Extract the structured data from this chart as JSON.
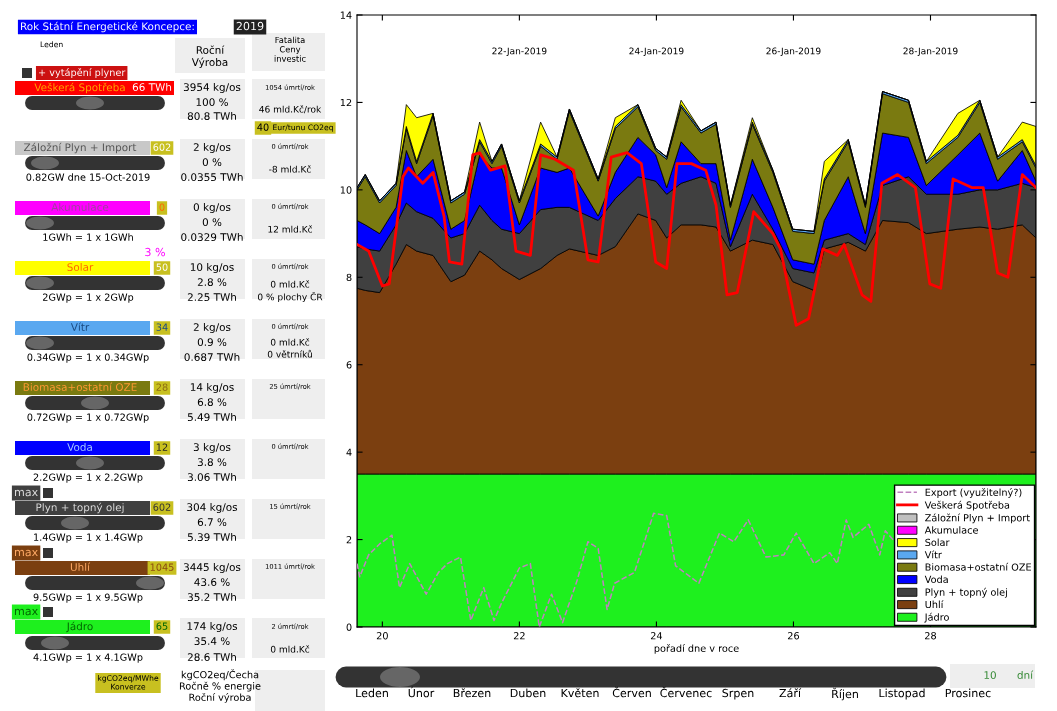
{
  "chart_data": [
    {
      "type": "other",
      "annotations": [
        "Rok Státní Energetické Koncepce:",
        "2019",
        "Leden",
        "Roční\nVýroba",
        "Fatalita\nCeny\ninvestic",
        "+ vytápění plyner",
        "Veškerá Spotřeba",
        "66 TWh",
        "3954 kg/os",
        "1054 úmrtí/rok",
        "100 %",
        "46 mld.Kč/rok",
        "80.8 TWh",
        "40",
        "Eur/tunu CO2eq",
        "Záložní Plyn + Import",
        "602",
        "2 kg/os",
        "0 úmrtí/rok",
        "0 %",
        "-8 mld.Kč",
        "0.82GW dne 15-Oct-2019",
        "0.0355 TWh",
        "Akumulace",
        "0",
        "0 kg/os",
        "0 úmrtí/rok",
        "0 %",
        "12 mld.Kč",
        "1GWh = 1 x 1GWh",
        "0.0329 TWh",
        "3 %",
        "Solar",
        "50",
        "10 kg/os",
        "0 úmrtí/rok",
        "2.8 %",
        "0 mld.Kč",
        "2GWp = 1 x 2GWp",
        "2.25 TWh",
        "0 % plochy ČR",
        "Vítr",
        "34",
        "2 kg/os",
        "0 úmrtí/rok",
        "0.9 %",
        "0 mld.Kč",
        "0.34GWp = 1 x 0.34GWp",
        "0.687 TWh",
        "0 větrníků",
        "Biomasa+ostatní OZE",
        "28",
        "14 kg/os",
        "25 úmrtí/rok",
        "6.8 %",
        "0.72GWp = 1 x 0.72GWp",
        "5.49 TWh",
        "Voda",
        "12",
        "3 kg/os",
        "0 úmrtí/rok",
        "3.8 %",
        "2.2GWp = 1 x 2.2GWp",
        "3.06 TWh",
        "max",
        "Plyn + topný olej",
        "602",
        "304 kg/os",
        "15 úmrtí/rok",
        "6.7 %",
        "1.4GWp = 1 x 1.4GWp",
        "5.39 TWh",
        "max",
        "Uhlí",
        "1045",
        "3445 kg/os",
        "1011 úmrtí/rok",
        "43.6 %",
        "9.5GWp = 1 x 9.5GWp",
        "35.2 TWh",
        "max",
        "Jádro",
        "65",
        "174 kg/os",
        "2 úmrtí/rok",
        "35.4 %",
        "0 mld.Kč",
        "4.1GWp = 1 x 4.1GWp",
        "28.6 TWh",
        "kgCO2eq/MWhe\nKonverze",
        "kgCO2eq/Čecha\nRočně % energie\nRoční výroba",
        "10",
        "dní",
        "Leden",
        "Únor",
        "Březen",
        "Duben",
        "Květen",
        "Červen",
        "Červenec",
        "Srpen",
        "Září",
        "Říjen",
        "Listopad",
        "Prosinec"
      ]
    },
    {
      "type": "area",
      "stacked": true,
      "xlabel": "pořadí dne v roce",
      "legend": "lower right",
      "xlim": [
        19.63,
        29.54
      ],
      "xticks": [
        20,
        22,
        24,
        26,
        28
      ],
      "annotations": [
        "22-Jan-2019",
        "24-Jan-2019",
        "26-Jan-2019",
        "28-Jan-2019"
      ],
      "ylim": [
        0,
        14
      ],
      "yticks": [
        0,
        2,
        4,
        6,
        8,
        10,
        12,
        14
      ],
      "x": [
        19.63,
        19.75,
        19.96,
        20.2,
        20.35,
        20.5,
        20.74,
        21.0,
        21.2,
        21.42,
        21.6,
        21.74,
        22.0,
        22.31,
        22.55,
        22.73,
        23.15,
        23.4,
        23.73,
        23.99,
        24.15,
        24.36,
        24.65,
        24.87,
        25.08,
        25.4,
        25.7,
        25.99,
        26.3,
        26.45,
        26.8,
        27.05,
        27.3,
        27.68,
        27.94,
        28.4,
        28.72,
        28.98,
        29.34,
        29.54
      ],
      "series": [
        {
          "name": "Jádro",
          "color": "#1ef01e",
          "values": [
            3.5,
            3.5,
            3.5,
            3.5,
            3.5,
            3.5,
            3.5,
            3.5,
            3.5,
            3.5,
            3.5,
            3.5,
            3.5,
            3.5,
            3.5,
            3.5,
            3.5,
            3.5,
            3.5,
            3.5,
            3.5,
            3.5,
            3.5,
            3.5,
            3.5,
            3.5,
            3.5,
            3.5,
            3.5,
            3.5,
            3.5,
            3.5,
            3.5,
            3.5,
            3.5,
            3.5,
            3.5,
            3.5,
            3.5,
            3.5
          ]
        },
        {
          "name": "Uhlí",
          "color": "#7b3f10",
          "values": [
            4.25,
            4.2,
            4.15,
            4.8,
            5.25,
            5.1,
            5.0,
            4.4,
            4.55,
            5.1,
            4.9,
            4.7,
            4.45,
            4.7,
            5.0,
            5.15,
            5.0,
            5.2,
            5.95,
            5.8,
            5.4,
            5.7,
            5.7,
            5.65,
            5.1,
            5.35,
            5.25,
            4.4,
            4.2,
            5.15,
            5.3,
            5.1,
            5.8,
            5.75,
            5.5,
            5.6,
            5.65,
            5.6,
            5.7,
            5.4
          ]
        },
        {
          "name": "Plyn + topný olej",
          "color": "#404040",
          "values": [
            0.95,
            0.95,
            0.95,
            0.9,
            0.95,
            0.9,
            0.85,
            1.0,
            0.95,
            1.05,
            0.9,
            0.9,
            1.05,
            1.35,
            1.1,
            0.95,
            0.8,
            1.1,
            0.85,
            0.9,
            1.0,
            0.95,
            1.1,
            1.0,
            0.1,
            1.05,
            0.35,
            0.3,
            0.4,
            0.2,
            0.2,
            0.15,
            0.8,
            1.05,
            0.9,
            0.8,
            0.85,
            0.9,
            0.95,
            1.15
          ]
        },
        {
          "name": "Voda",
          "color": "#0000ff",
          "values": [
            0.6,
            0.55,
            0.4,
            0.4,
            1.2,
            0.8,
            1.35,
            0.2,
            0.3,
            1.15,
            1.2,
            1.4,
            0.2,
            0.95,
            0.8,
            0.9,
            0.1,
            0.6,
            0.9,
            0.6,
            0.15,
            0.95,
            0.3,
            0.45,
            0.15,
            0.8,
            0.5,
            0.2,
            0.2,
            0.45,
            1.3,
            0.25,
            1.2,
            0.9,
            0.2,
            0.9,
            1.3,
            0.2,
            0.75,
            0.15
          ]
        },
        {
          "name": "Biomasa+ostatní OZE",
          "color": "#7a7a10",
          "values": [
            0.7,
            1.1,
            0.7,
            0.5,
            0.5,
            0.3,
            1.0,
            0.6,
            0.6,
            0.3,
            0.1,
            0.5,
            0.5,
            0.5,
            0.3,
            1.3,
            0.8,
            1.0,
            0.7,
            0.1,
            0.65,
            0.8,
            0.7,
            0.9,
            0.75,
            0.8,
            0.8,
            0.65,
            0.7,
            0.9,
            0.8,
            0.6,
            0.9,
            0.8,
            0.5,
            0.4,
            0.7,
            0.5,
            0.2,
            0.3
          ]
        },
        {
          "name": "Vítr",
          "color": "#5aa8f0",
          "values": [
            0.05,
            0.05,
            0.05,
            0.05,
            0.05,
            0.05,
            0.05,
            0.05,
            0.05,
            0.05,
            0.05,
            0.05,
            0.05,
            0.05,
            0.05,
            0.05,
            0.05,
            0.05,
            0.05,
            0.05,
            0.05,
            0.05,
            0.05,
            0.05,
            0.05,
            0.05,
            0.05,
            0.05,
            0.05,
            0.05,
            0.05,
            0.05,
            0.05,
            0.05,
            0.05,
            0.05,
            0.05,
            0.05,
            0.05,
            0.05
          ]
        },
        {
          "name": "Solar",
          "color": "#ffff00",
          "values": [
            0,
            0,
            0,
            0,
            0.5,
            1.0,
            0,
            0,
            0,
            0.4,
            0,
            0,
            0,
            0.5,
            0,
            0,
            0,
            0.2,
            0,
            0,
            0,
            0.1,
            0,
            0,
            0,
            0.1,
            0,
            0,
            0,
            0.4,
            0,
            0,
            0,
            0,
            0,
            0.5,
            0,
            0,
            0.4,
            0.9
          ]
        },
        {
          "name": "Akumulace",
          "color": "#ff00ff",
          "values": [
            null,
            null,
            null,
            null,
            null,
            null,
            null,
            null,
            null,
            null,
            null,
            null,
            null,
            null,
            null,
            null,
            null,
            null,
            null,
            null,
            null,
            null,
            null,
            null,
            null,
            null,
            null,
            null,
            null,
            null,
            null,
            null,
            null,
            null,
            null,
            null,
            null,
            null,
            null,
            null
          ]
        },
        {
          "name": "Záložní Plyn + Import",
          "color": "#c0c0c0",
          "values": [
            null,
            null,
            null,
            null,
            null,
            null,
            null,
            null,
            null,
            null,
            null,
            null,
            null,
            null,
            null,
            null,
            null,
            null,
            null,
            null,
            null,
            null,
            null,
            null,
            null,
            null,
            null,
            null,
            null,
            null,
            null,
            null,
            null,
            null,
            null,
            null,
            null,
            null,
            null,
            null
          ]
        },
        {
          "name": "Veškerá Spotřeba",
          "type": "line",
          "color": "#ff0000",
          "x": [
            19.63,
            19.8,
            20.0,
            20.1,
            20.3,
            20.38,
            20.59,
            20.74,
            20.9,
            20.98,
            21.16,
            21.32,
            21.42,
            21.58,
            21.79,
            21.95,
            22.16,
            22.31,
            22.52,
            22.79,
            23.0,
            23.15,
            23.34,
            23.57,
            23.78,
            23.99,
            24.15,
            24.3,
            24.51,
            24.72,
            24.87,
            25.03,
            25.18,
            25.42,
            25.7,
            25.81,
            26.04,
            26.22,
            26.43,
            26.64,
            26.74,
            27.0,
            27.13,
            27.29,
            27.52,
            27.78,
            27.99,
            28.15,
            28.33,
            28.61,
            28.77,
            28.98,
            29.13,
            29.34,
            29.54
          ],
          "values": [
            8.75,
            8.6,
            7.8,
            7.85,
            10.3,
            10.5,
            10.15,
            10.4,
            9.4,
            8.35,
            8.3,
            10.8,
            10.85,
            10.45,
            10.55,
            8.6,
            8.5,
            10.8,
            10.7,
            10.45,
            8.4,
            8.35,
            10.75,
            10.85,
            10.6,
            8.35,
            8.2,
            10.6,
            10.6,
            10.45,
            9.65,
            7.6,
            7.65,
            9.5,
            9.0,
            8.65,
            6.9,
            7.05,
            8.65,
            8.5,
            8.75,
            7.6,
            7.45,
            10.15,
            10.35,
            10.05,
            7.85,
            7.75,
            10.25,
            10.05,
            10.05,
            8.1,
            8.0,
            10.35,
            10.05
          ]
        },
        {
          "name": "Export (využitelný?)",
          "type": "line",
          "line_style": "dashed",
          "color": "#c080c0",
          "x": [
            19.63,
            19.67,
            19.8,
            19.96,
            20.14,
            20.25,
            20.4,
            20.64,
            20.82,
            20.95,
            21.14,
            21.29,
            21.48,
            21.63,
            21.74,
            22.0,
            22.16,
            22.29,
            22.47,
            22.63,
            22.84,
            23.0,
            23.15,
            23.28,
            23.39,
            23.68,
            23.96,
            24.15,
            24.28,
            24.62,
            24.92,
            25.13,
            25.34,
            25.6,
            25.86,
            26.04,
            26.3,
            26.53,
            26.64,
            26.77,
            26.87,
            27.1,
            27.26,
            27.34,
            27.48
          ],
          "values": [
            1.45,
            1.15,
            1.65,
            1.9,
            2.1,
            0.9,
            1.45,
            0.75,
            1.25,
            1.45,
            1.6,
            0.15,
            0.9,
            0.15,
            0.55,
            1.35,
            1.45,
            0.0,
            0.75,
            0.1,
            1.05,
            1.95,
            1.8,
            0.4,
            1.0,
            1.25,
            2.6,
            2.55,
            1.4,
            1.0,
            2.15,
            1.95,
            2.45,
            1.6,
            1.65,
            2.15,
            1.45,
            1.7,
            1.45,
            2.45,
            2.05,
            2.35,
            1.65,
            2.2,
            1.95
          ]
        }
      ]
    }
  ]
}
